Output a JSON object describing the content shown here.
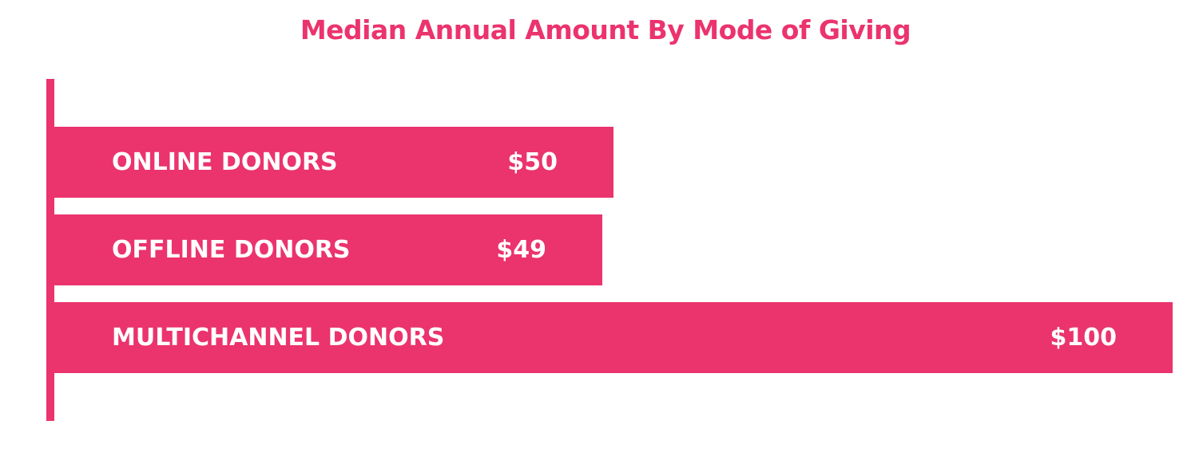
{
  "colors": {
    "bar": "#EB336D",
    "title": "#EB336D",
    "label": "#FFFFFF",
    "background": "#FFFFFF"
  },
  "chart_data": {
    "type": "bar",
    "orientation": "horizontal",
    "title": "Median Annual Amount By Mode of Giving",
    "categories": [
      "ONLINE DONORS",
      "OFFLINE DONORS",
      "MULTICHANNEL DONORS"
    ],
    "values": [
      50,
      49,
      100
    ],
    "value_labels": [
      "$50",
      "$49",
      "$100"
    ],
    "xlim": [
      0,
      100
    ],
    "xlabel": "",
    "ylabel": "",
    "grid": false,
    "legend": "none"
  }
}
